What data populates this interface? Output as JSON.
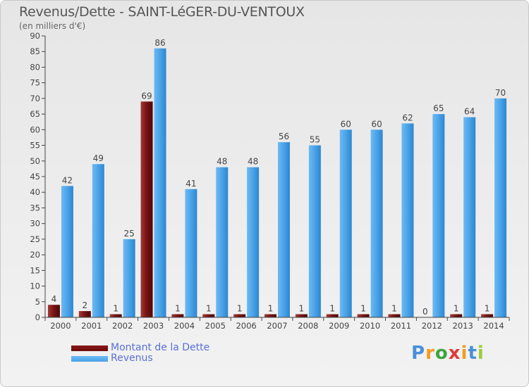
{
  "header": {
    "title": "Revenus/Dette - SAINT-LéGER-DU-VENTOUX",
    "subtitle": "(en milliers d'€)"
  },
  "legend": {
    "items": [
      {
        "label": "Montant de la Dette",
        "color": "#6b0a0a"
      },
      {
        "label": "Revenus",
        "color": "#4aa3e8"
      }
    ]
  },
  "brand": {
    "letters": [
      {
        "ch": "P",
        "color": "#4a90d9"
      },
      {
        "ch": "r",
        "color": "#f39c1f"
      },
      {
        "ch": "o",
        "color": "#3fa33f"
      },
      {
        "ch": "x",
        "color": "#e03a3a"
      },
      {
        "ch": "i",
        "color": "#f39c1f"
      },
      {
        "ch": "t",
        "color": "#4a90d9"
      },
      {
        "ch": "i",
        "color": "#9ccc3a"
      }
    ]
  },
  "chart_data": {
    "type": "bar",
    "title": "Revenus/Dette - SAINT-LéGER-DU-VENTOUX",
    "subtitle": "(en milliers d'€)",
    "categories": [
      "2000",
      "2001",
      "2002",
      "2003",
      "2004",
      "2005",
      "2006",
      "2007",
      "2008",
      "2009",
      "2010",
      "2011",
      "2012",
      "2013",
      "2014"
    ],
    "series": [
      {
        "name": "Montant de la Dette",
        "color": "#6b0a0a",
        "values": [
          4,
          2,
          1,
          69,
          1,
          1,
          1,
          1,
          1,
          1,
          1,
          1,
          0,
          1,
          1
        ]
      },
      {
        "name": "Revenus",
        "color": "#4aa3e8",
        "values": [
          42,
          49,
          25,
          86,
          41,
          48,
          48,
          56,
          55,
          60,
          60,
          62,
          65,
          64,
          70
        ]
      }
    ],
    "ylim": [
      0,
      90
    ],
    "yticks": [
      0,
      5,
      10,
      15,
      20,
      25,
      30,
      35,
      40,
      45,
      50,
      55,
      60,
      65,
      70,
      75,
      80,
      85,
      90
    ],
    "grid": false,
    "legend_position": "bottom-left"
  }
}
